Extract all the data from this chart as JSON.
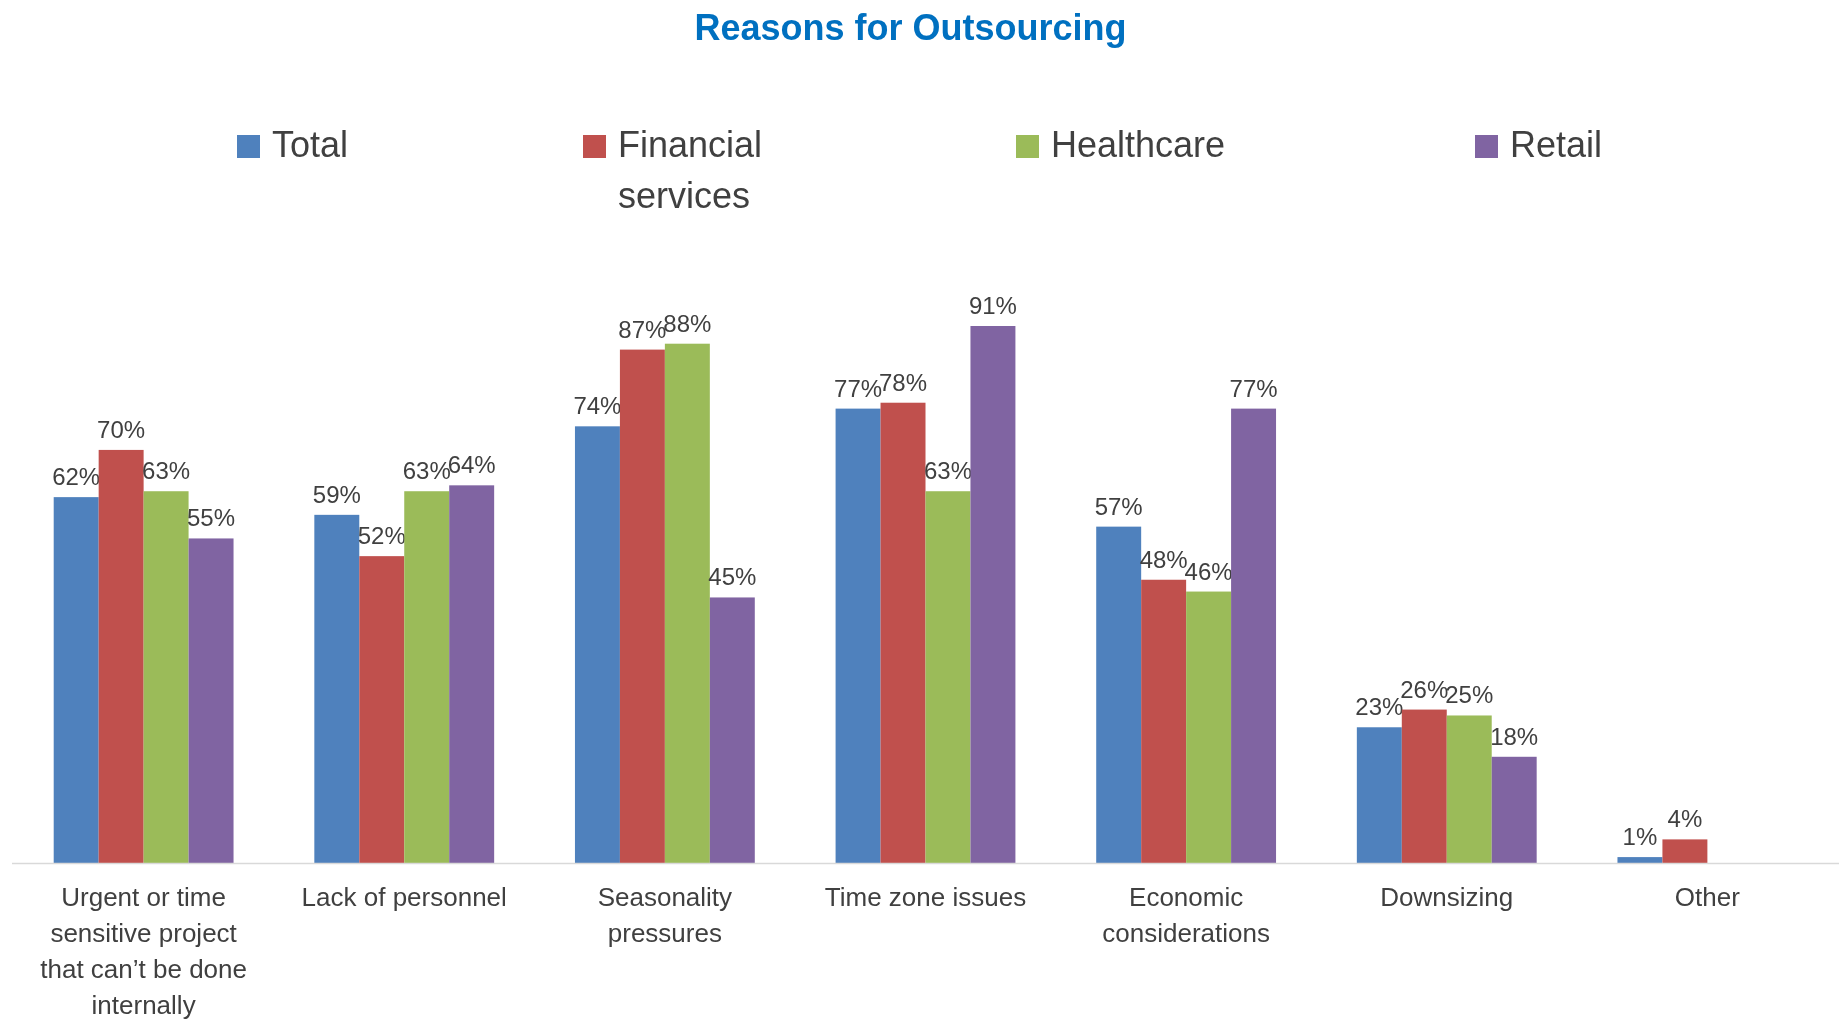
{
  "chart_data": {
    "type": "bar",
    "title": "Reasons for Outsourcing",
    "categories": [
      "Urgent or time sensitive project that can’t be done internally",
      "Lack of personnel",
      "Seasonality pressures",
      "Time zone issues",
      "Economic considerations",
      "Downsizing",
      "Other"
    ],
    "series": [
      {
        "name": "Total",
        "color": "#4f81bd",
        "values": [
          62,
          59,
          74,
          77,
          57,
          23,
          1
        ],
        "value_labels": [
          "62%",
          "59%",
          "74%",
          "77%",
          "57%",
          "23%",
          "1%"
        ]
      },
      {
        "name": "Financial services",
        "color": "#c0504d",
        "values": [
          70,
          52,
          87,
          78,
          48,
          26,
          4
        ],
        "value_labels": [
          "70%",
          "52%",
          "87%",
          "78%",
          "48%",
          "26%",
          "4%"
        ]
      },
      {
        "name": "Healthcare",
        "color": "#9bbb59",
        "values": [
          63,
          63,
          88,
          63,
          46,
          25,
          null
        ],
        "value_labels": [
          "63%",
          "63%",
          "88%",
          "63%",
          "46%",
          "25%",
          null
        ]
      },
      {
        "name": "Retail",
        "color": "#8064a2",
        "values": [
          55,
          64,
          45,
          91,
          77,
          18,
          null
        ],
        "value_labels": [
          "55%",
          "64%",
          "45%",
          "91%",
          "77%",
          "18%",
          null
        ]
      }
    ],
    "legend": "top",
    "grid": false
  }
}
